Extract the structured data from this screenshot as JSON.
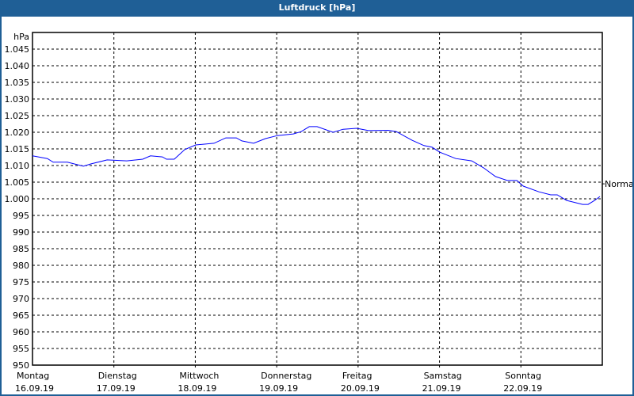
{
  "window": {
    "title": "Luftdruck [hPa]"
  },
  "chart_data": {
    "type": "line",
    "title": "Luftdruck [hPa]",
    "ylabel": "hPa",
    "ylim": [
      950,
      1050
    ],
    "ytick_step": 5,
    "yticks": [
      "950",
      "955",
      "960",
      "965",
      "970",
      "975",
      "980",
      "985",
      "990",
      "995",
      "1.000",
      "1.005",
      "1.010",
      "1.015",
      "1.020",
      "1.025",
      "1.030",
      "1.035",
      "1.040",
      "1.045"
    ],
    "x_unit": "hours since Montag 00:00",
    "xlim": [
      0,
      168
    ],
    "grid": true,
    "days": [
      {
        "name": "Montag",
        "date": "16.09.19"
      },
      {
        "name": "Dienstag",
        "date": "17.09.19"
      },
      {
        "name": "Mittwoch",
        "date": "18.09.19"
      },
      {
        "name": "Donnerstag",
        "date": "19.09.19"
      },
      {
        "name": "Freitag",
        "date": "20.09.19"
      },
      {
        "name": "Samstag",
        "date": "21.09.19"
      },
      {
        "name": "Sonntag",
        "date": "22.09.19"
      }
    ],
    "reference": {
      "label": "Normal",
      "value": 1004.5
    },
    "series": [
      {
        "name": "Luftdruck",
        "color": "#0000ff",
        "x": [
          0,
          4.4,
          6.1,
          10.3,
          15,
          17.3,
          22,
          27.8,
          32.5,
          34.8,
          38.3,
          39.5,
          41.8,
          44.9,
          48.1,
          53.5,
          57,
          60.1,
          61.7,
          65.2,
          68.7,
          72.2,
          76.9,
          79.2,
          81.6,
          83.9,
          88.6,
          91.6,
          95.6,
          99.1,
          104.9,
          107.3,
          111.9,
          115.4,
          117.8,
          120.1,
          124.8,
          129.5,
          133,
          136.5,
          140,
          142.8,
          144.7,
          149.3,
          152.8,
          154.7,
          157.5,
          162.2,
          163.8,
          165.7,
          167.3
        ],
        "y": [
          1012.9,
          1012.1,
          1011,
          1011,
          1009.8,
          1010.5,
          1011.7,
          1011.4,
          1011.9,
          1012.9,
          1012.6,
          1011.9,
          1011.9,
          1014.8,
          1016.2,
          1016.7,
          1018.3,
          1018.3,
          1017.4,
          1016.7,
          1018.1,
          1019,
          1019.5,
          1020.2,
          1021.7,
          1021.7,
          1020,
          1020.9,
          1021.2,
          1020.5,
          1020.6,
          1020.2,
          1017.6,
          1016,
          1015.5,
          1014,
          1012.1,
          1011.4,
          1009.3,
          1006.7,
          1005.5,
          1005.5,
          1003.8,
          1002.1,
          1001.2,
          1001.2,
          999.5,
          998.3,
          998.3,
          999.5,
          1000.7
        ]
      }
    ]
  }
}
